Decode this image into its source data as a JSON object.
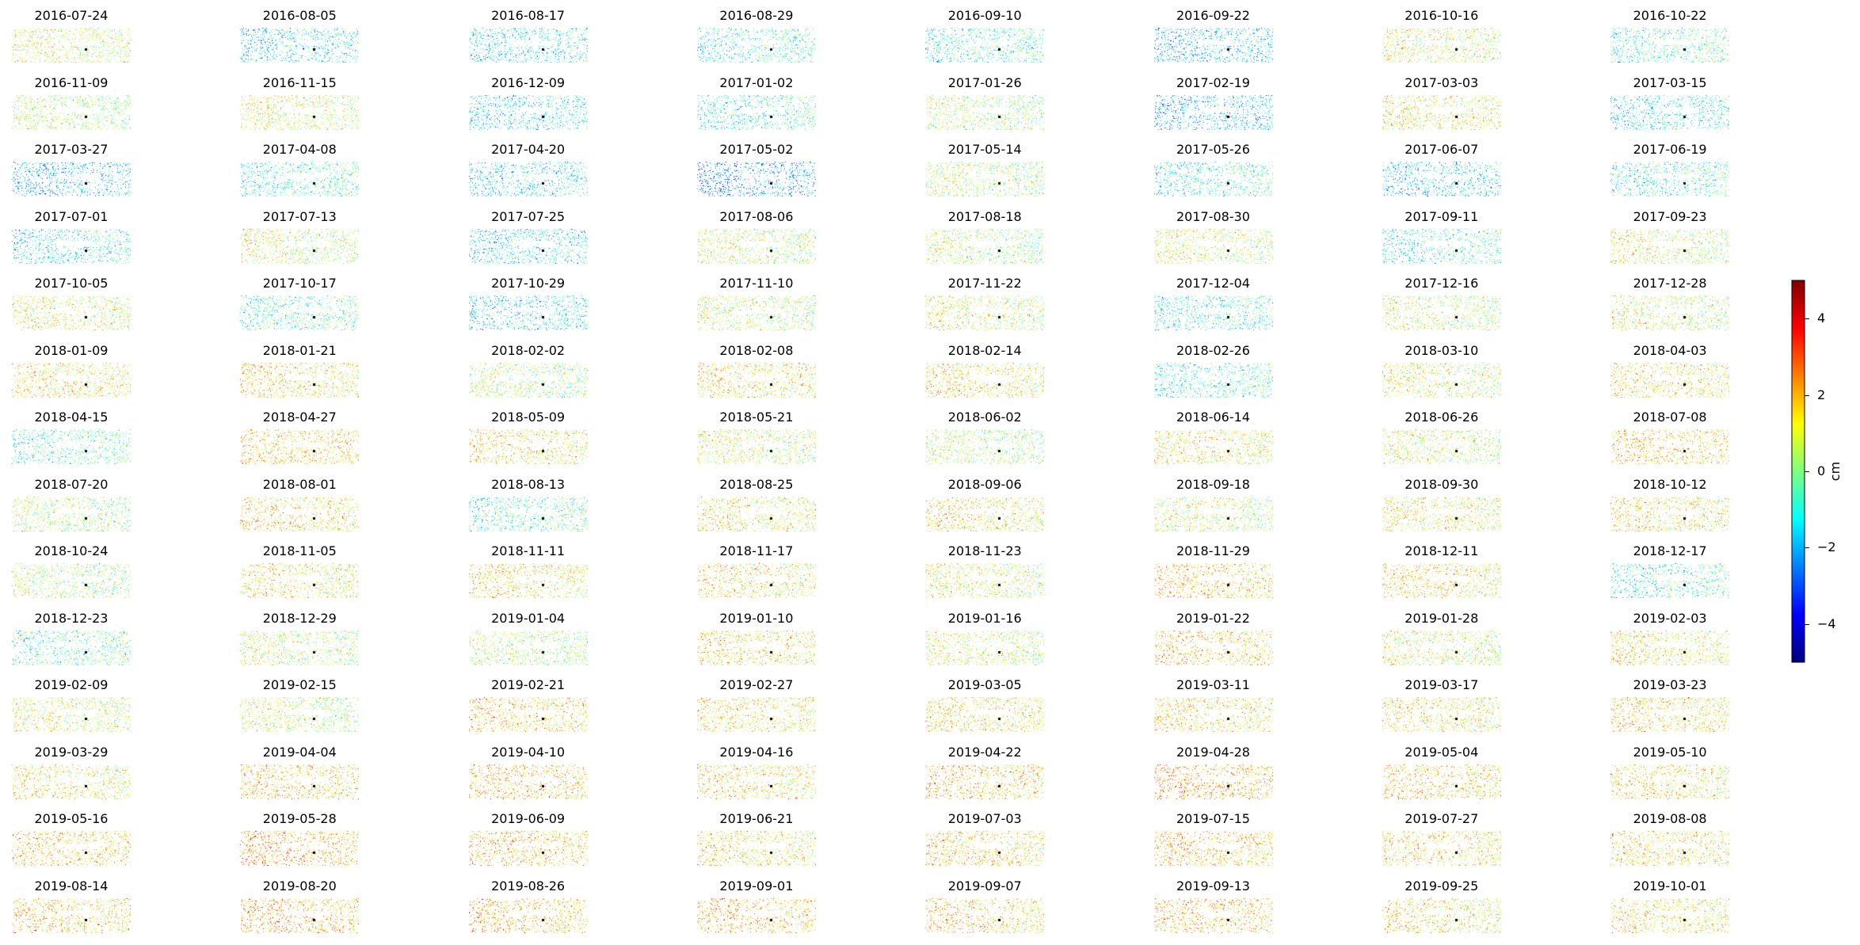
{
  "chart_data": {
    "type": "heatmap",
    "panel_titles": [
      "2016-07-24",
      "2016-08-05",
      "2016-08-17",
      "2016-08-29",
      "2016-09-10",
      "2016-09-22",
      "2016-10-16",
      "2016-10-22",
      "2016-11-09",
      "2016-11-15",
      "2016-12-09",
      "2017-01-02",
      "2017-01-26",
      "2017-02-19",
      "2017-03-03",
      "2017-03-15",
      "2017-03-27",
      "2017-04-08",
      "2017-04-20",
      "2017-05-02",
      "2017-05-14",
      "2017-05-26",
      "2017-06-07",
      "2017-06-19",
      "2017-07-01",
      "2017-07-13",
      "2017-07-25",
      "2017-08-06",
      "2017-08-18",
      "2017-08-30",
      "2017-09-11",
      "2017-09-23",
      "2017-10-05",
      "2017-10-17",
      "2017-10-29",
      "2017-11-10",
      "2017-11-22",
      "2017-12-04",
      "2017-12-16",
      "2017-12-28",
      "2018-01-09",
      "2018-01-21",
      "2018-02-02",
      "2018-02-08",
      "2018-02-14",
      "2018-02-26",
      "2018-03-10",
      "2018-04-03",
      "2018-04-15",
      "2018-04-27",
      "2018-05-09",
      "2018-05-21",
      "2018-06-02",
      "2018-06-14",
      "2018-06-26",
      "2018-07-08",
      "2018-07-20",
      "2018-08-01",
      "2018-08-13",
      "2018-08-25",
      "2018-09-06",
      "2018-09-18",
      "2018-09-30",
      "2018-10-12",
      "2018-10-24",
      "2018-11-05",
      "2018-11-11",
      "2018-11-17",
      "2018-11-23",
      "2018-11-29",
      "2018-12-11",
      "2018-12-17",
      "2018-12-23",
      "2018-12-29",
      "2019-01-04",
      "2019-01-10",
      "2019-01-16",
      "2019-01-22",
      "2019-01-28",
      "2019-02-03",
      "2019-02-09",
      "2019-02-15",
      "2019-02-21",
      "2019-02-27",
      "2019-03-05",
      "2019-03-11",
      "2019-03-17",
      "2019-03-23",
      "2019-03-29",
      "2019-04-04",
      "2019-04-10",
      "2019-04-16",
      "2019-04-22",
      "2019-04-28",
      "2019-05-04",
      "2019-05-10",
      "2019-05-16",
      "2019-05-28",
      "2019-06-09",
      "2019-06-21",
      "2019-07-03",
      "2019-07-15",
      "2019-07-27",
      "2019-08-08",
      "2019-08-14",
      "2019-08-20",
      "2019-08-26",
      "2019-09-01",
      "2019-09-07",
      "2019-09-13",
      "2019-09-25",
      "2019-10-01"
    ],
    "mean_displacement_cm": [
      0.5,
      -1.0,
      -1.0,
      -0.5,
      -0.5,
      -1.5,
      0.5,
      -0.3,
      0.0,
      0.5,
      -1.0,
      -0.5,
      0.0,
      -1.5,
      0.8,
      -0.8,
      -1.5,
      -0.5,
      -1.0,
      -2.0,
      0.0,
      -0.5,
      -1.2,
      -0.5,
      -0.8,
      0.3,
      -1.0,
      0.3,
      0.0,
      0.5,
      -0.5,
      0.5,
      0.5,
      -0.3,
      -1.0,
      0.3,
      0.5,
      -0.5,
      0.3,
      0.3,
      1.0,
      1.0,
      0.0,
      1.0,
      1.0,
      -0.5,
      0.5,
      1.0,
      -0.3,
      1.3,
      1.0,
      0.5,
      0.0,
      0.8,
      0.3,
      1.3,
      0.0,
      1.0,
      -0.3,
      0.8,
      1.0,
      0.3,
      0.8,
      1.0,
      0.0,
      0.8,
      1.0,
      1.0,
      0.5,
      1.3,
      1.0,
      -0.5,
      -0.3,
      0.3,
      0.0,
      1.0,
      0.5,
      1.3,
      0.5,
      0.8,
      0.5,
      0.3,
      1.3,
      1.0,
      1.0,
      1.0,
      1.0,
      1.2,
      0.8,
      1.3,
      1.5,
      1.0,
      1.5,
      1.8,
      1.3,
      1.0,
      1.3,
      1.8,
      1.5,
      1.0,
      1.3,
      1.5,
      1.0,
      1.0,
      1.3,
      1.8,
      1.5,
      1.5,
      1.3,
      1.5,
      1.0,
      1.0
    ],
    "colormap": "jet",
    "colorbar": {
      "range": [
        -5,
        5
      ],
      "ticks": [
        4,
        2,
        0,
        -2,
        -4
      ],
      "tick_labels": [
        "4",
        "2",
        "0",
        "−2",
        "−4"
      ],
      "label": "cm",
      "colors": [
        "#00007f",
        "#0000ff",
        "#007fff",
        "#00ffff",
        "#7fff7f",
        "#ffff00",
        "#ff7f00",
        "#ff0000",
        "#7f0000"
      ]
    },
    "reference_point_color": "#000000",
    "grid": "off",
    "xlabel": "",
    "ylabel": "",
    "title": ""
  }
}
